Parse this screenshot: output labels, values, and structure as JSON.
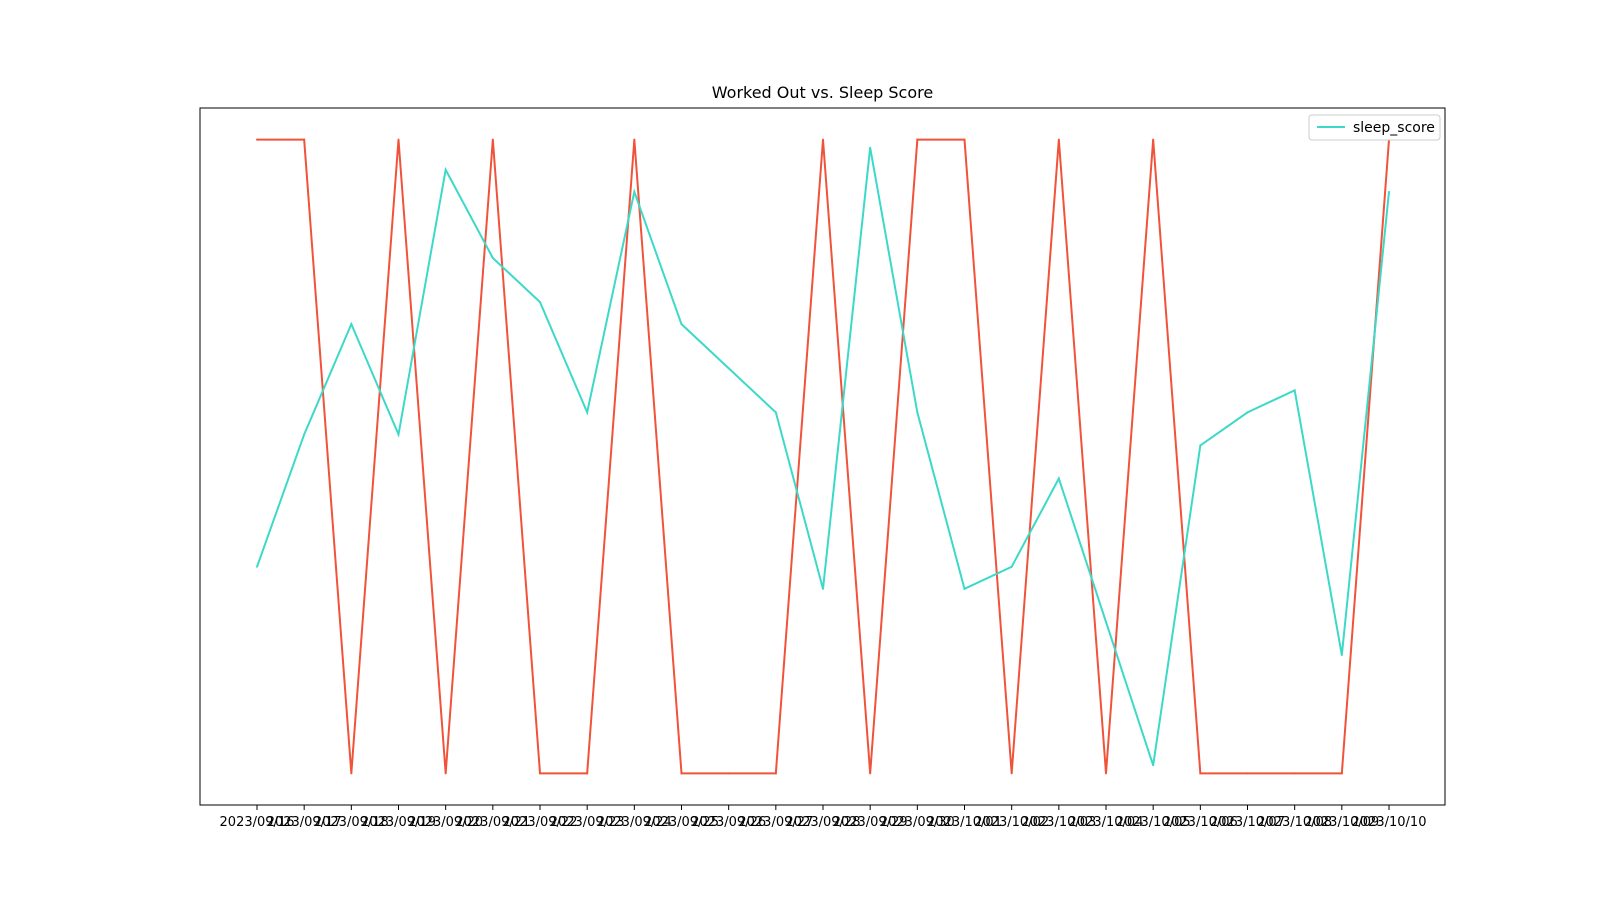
{
  "chart_data": {
    "type": "line",
    "title": "Worked Out vs. Sleep Score",
    "xlabel": "",
    "ylabel": "",
    "x": [
      "2023/09/16",
      "2023/09/17",
      "2023/09/18",
      "2023/09/19",
      "2023/09/20",
      "2023/09/21",
      "2023/09/22",
      "2023/09/23",
      "2023/09/24",
      "2023/09/25",
      "2023/09/26",
      "2023/09/27",
      "2023/09/28",
      "2023/09/29",
      "2023/09/30",
      "2023/10/01",
      "2023/10/02",
      "2023/10/03",
      "2023/10/04",
      "2023/10/05",
      "2023/10/06",
      "2023/10/07",
      "2023/10/08",
      "2023/10/09",
      "2023/10/10"
    ],
    "series": [
      {
        "name": "",
        "color": "#f0533a",
        "values": [
          1,
          1,
          0,
          1,
          0,
          1,
          0,
          0,
          1,
          0,
          0,
          0,
          1,
          0,
          1,
          1,
          0,
          1,
          0,
          1,
          0,
          0,
          0,
          0,
          1
        ]
      },
      {
        "name": "sleep_score",
        "color": "#3dd9c8",
        "values": [
          75,
          81,
          86,
          81,
          93,
          89,
          87,
          82,
          92,
          86,
          84,
          82,
          74,
          94,
          82,
          74,
          75,
          79,
          72.5,
          66,
          80.5,
          82,
          83,
          71,
          92
        ]
      }
    ],
    "ylim_left": [
      -0.05,
      1.05
    ],
    "ylim_right": [
      64.2,
      95.8
    ],
    "y_ticks_visible": false,
    "legend": {
      "position": "top-right",
      "entries": [
        "sleep_score"
      ]
    },
    "grid": false
  }
}
